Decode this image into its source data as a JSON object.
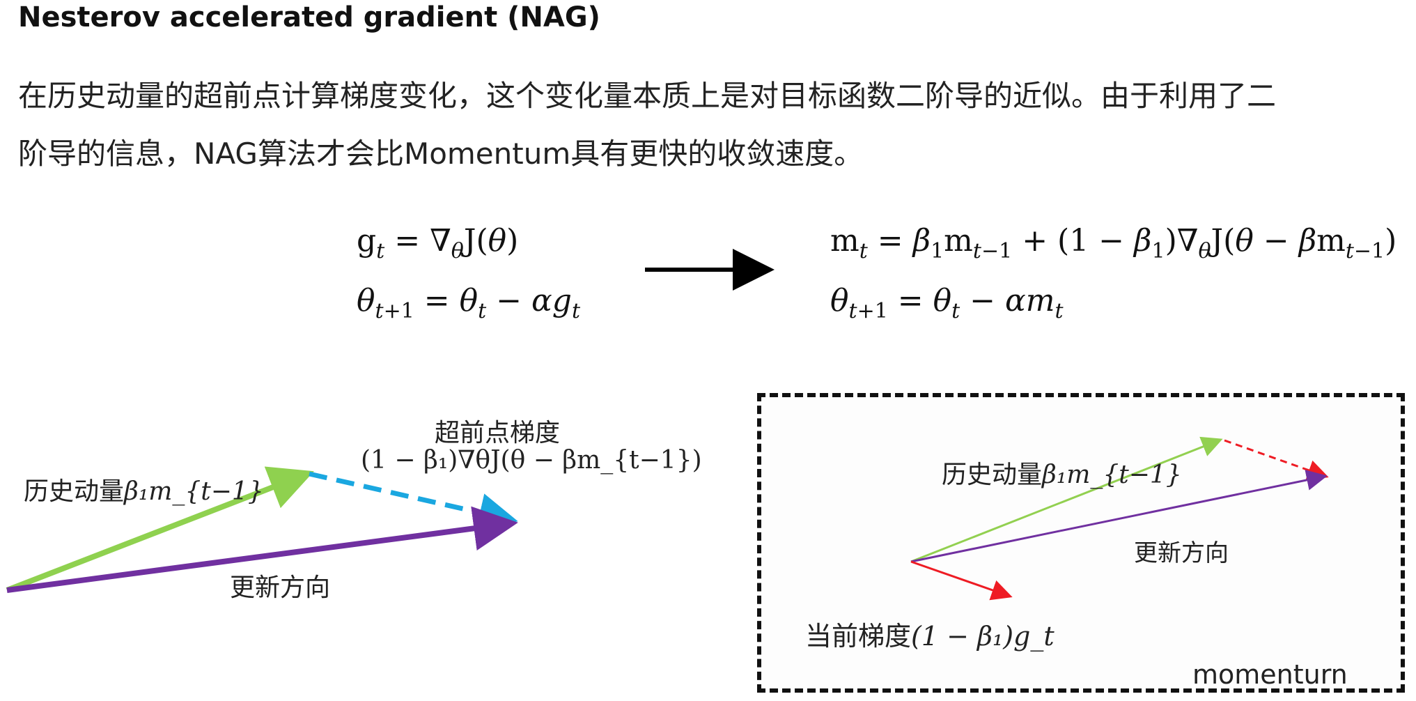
{
  "title": "Nesterov accelerated gradient (NAG)",
  "paragraph": {
    "line1": "在历史动量的超前点计算梯度变化，这个变化量本质上是对目标函数二阶导的近似。由于利用了二",
    "line2": "阶导的信息，NAG算法才会比Momentum具有更快的收敛速度。"
  },
  "equations": {
    "left": {
      "line1": "g_t = ∇_θ J(θ)",
      "line2": "θ_{t+1} = θ_t − α g_t"
    },
    "right": {
      "line1": "m_t = β_1 m_{t−1} + (1 − β_1) ∇_θ J(θ − β m_{t−1})",
      "line2": "θ_{t+1} = θ_t − α m_t"
    }
  },
  "diagram_nag": {
    "label_lookahead_title": "超前点梯度",
    "label_lookahead_formula": "(1 − β₁)∇θJ(θ − βm_{t−1})",
    "label_history_prefix": "历史动量",
    "label_history_math": "β₁m_{t−1}",
    "label_update": "更新方向",
    "colors": {
      "history": "#8fd14f",
      "lookahead": "#1aa7e0",
      "update": "#7030a0"
    }
  },
  "diagram_momentum": {
    "label_history_prefix": "历史动量",
    "label_history_math": "β₁m_{t−1}",
    "label_update": "更新方向",
    "label_gradient_prefix": "当前梯度",
    "label_gradient_math": "(1 − β₁)g_t",
    "box_label": "momenturn",
    "colors": {
      "history": "#92d050",
      "gradient": "#ee1c24",
      "update": "#7030a0"
    }
  }
}
